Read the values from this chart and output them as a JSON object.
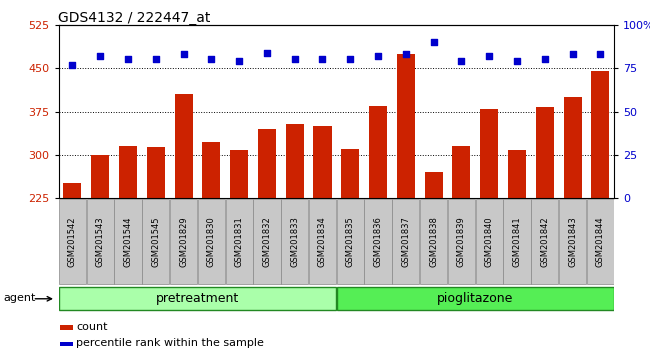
{
  "title": "GDS4132 / 222447_at",
  "samples": [
    "GSM201542",
    "GSM201543",
    "GSM201544",
    "GSM201545",
    "GSM201829",
    "GSM201830",
    "GSM201831",
    "GSM201832",
    "GSM201833",
    "GSM201834",
    "GSM201835",
    "GSM201836",
    "GSM201837",
    "GSM201838",
    "GSM201839",
    "GSM201840",
    "GSM201841",
    "GSM201842",
    "GSM201843",
    "GSM201844"
  ],
  "bar_values": [
    252,
    300,
    315,
    313,
    405,
    322,
    308,
    345,
    353,
    350,
    310,
    385,
    475,
    270,
    315,
    380,
    308,
    383,
    400,
    445
  ],
  "dot_values": [
    77,
    82,
    80,
    80,
    83,
    80,
    79,
    84,
    80,
    80,
    80,
    82,
    83,
    90,
    79,
    82,
    79,
    80,
    83,
    83
  ],
  "bar_color": "#cc2200",
  "dot_color": "#0000cc",
  "ylim_left": [
    225,
    525
  ],
  "ylim_right": [
    0,
    100
  ],
  "yticks_left": [
    225,
    300,
    375,
    450,
    525
  ],
  "yticks_right": [
    0,
    25,
    50,
    75,
    100
  ],
  "group1_label": "pretreatment",
  "group1_count": 10,
  "group2_label": "pioglitazone",
  "group2_count": 10,
  "agent_label": "agent",
  "group1_color": "#aaffaa",
  "group2_color": "#55ee55",
  "bar_bg_color": "#c8c8c8",
  "legend_count_label": "count",
  "legend_pct_label": "percentile rank within the sample",
  "background_color": "#ffffff",
  "plot_bg_color": "#ffffff",
  "gridline_color": "#000000",
  "group_divider_color": "#000000",
  "group_border_color": "#228822"
}
